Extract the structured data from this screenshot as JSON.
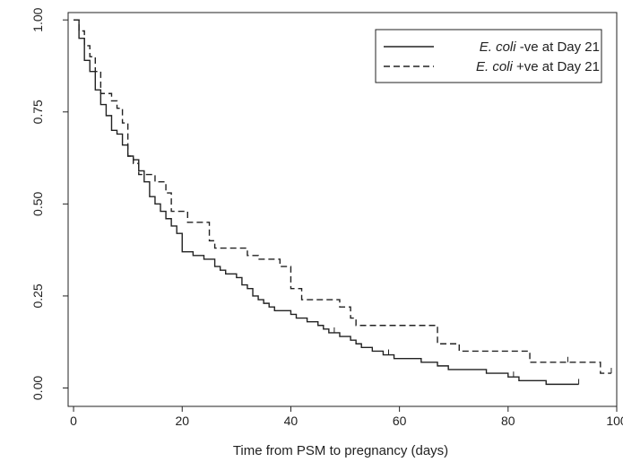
{
  "chart_data": {
    "type": "line",
    "step": true,
    "title": "",
    "xlabel": "Time from PSM to pregnancy (days)",
    "ylabel": "",
    "xlim": [
      -1,
      100
    ],
    "ylim": [
      -0.05,
      1.02
    ],
    "x_ticks": [
      {
        "value": 0,
        "label": "0"
      },
      {
        "value": 20,
        "label": "20"
      },
      {
        "value": 40,
        "label": "40"
      },
      {
        "value": 60,
        "label": "60"
      },
      {
        "value": 80,
        "label": "80"
      },
      {
        "value": 100,
        "label": "100"
      }
    ],
    "y_ticks": [
      {
        "value": 0,
        "label": "0.00"
      },
      {
        "value": 0.25,
        "label": "0.25"
      },
      {
        "value": 0.5,
        "label": "0.50"
      },
      {
        "value": 0.75,
        "label": "0.75"
      },
      {
        "value": 1,
        "label": "1.00"
      }
    ],
    "grid": false,
    "legend_position": "top-right",
    "series": [
      {
        "legend_italic": "E. coli",
        "legend_rest": " -ve at Day 21",
        "line_style": "solid",
        "color": "#222222",
        "points": [
          [
            0,
            1.0
          ],
          [
            1,
            0.95
          ],
          [
            2,
            0.89
          ],
          [
            3,
            0.86
          ],
          [
            4,
            0.81
          ],
          [
            5,
            0.77
          ],
          [
            6,
            0.74
          ],
          [
            7,
            0.7
          ],
          [
            8,
            0.69
          ],
          [
            9,
            0.66
          ],
          [
            10,
            0.63
          ],
          [
            11,
            0.62
          ],
          [
            12,
            0.59
          ],
          [
            13,
            0.56
          ],
          [
            14,
            0.52
          ],
          [
            15,
            0.5
          ],
          [
            16,
            0.48
          ],
          [
            17,
            0.46
          ],
          [
            18,
            0.44
          ],
          [
            19,
            0.42
          ],
          [
            20,
            0.37
          ],
          [
            22,
            0.36
          ],
          [
            24,
            0.35
          ],
          [
            26,
            0.33
          ],
          [
            27,
            0.32
          ],
          [
            28,
            0.31
          ],
          [
            30,
            0.3
          ],
          [
            31,
            0.28
          ],
          [
            32,
            0.27
          ],
          [
            33,
            0.25
          ],
          [
            34,
            0.24
          ],
          [
            35,
            0.23
          ],
          [
            36,
            0.22
          ],
          [
            37,
            0.21
          ],
          [
            40,
            0.2
          ],
          [
            41,
            0.19
          ],
          [
            43,
            0.18
          ],
          [
            45,
            0.17
          ],
          [
            46,
            0.16
          ],
          [
            47,
            0.15
          ],
          [
            49,
            0.14
          ],
          [
            51,
            0.13
          ],
          [
            52,
            0.12
          ],
          [
            53,
            0.11
          ],
          [
            55,
            0.1
          ],
          [
            57,
            0.09
          ],
          [
            59,
            0.08
          ],
          [
            64,
            0.07
          ],
          [
            67,
            0.06
          ],
          [
            69,
            0.05
          ],
          [
            76,
            0.04
          ],
          [
            80,
            0.03
          ],
          [
            82,
            0.02
          ],
          [
            87,
            0.01
          ],
          [
            93,
            0.01
          ]
        ],
        "censored_at": [
          48,
          58,
          81,
          93
        ]
      },
      {
        "legend_italic": "E. coli",
        "legend_rest": " +ve at Day 21",
        "line_style": "dashed",
        "color": "#222222",
        "points": [
          [
            0,
            1.0
          ],
          [
            1,
            0.97
          ],
          [
            2,
            0.93
          ],
          [
            3,
            0.9
          ],
          [
            4,
            0.86
          ],
          [
            5,
            0.8
          ],
          [
            7,
            0.78
          ],
          [
            8,
            0.76
          ],
          [
            9,
            0.72
          ],
          [
            10,
            0.63
          ],
          [
            11,
            0.61
          ],
          [
            12,
            0.58
          ],
          [
            15,
            0.56
          ],
          [
            17,
            0.53
          ],
          [
            18,
            0.48
          ],
          [
            21,
            0.45
          ],
          [
            25,
            0.4
          ],
          [
            26,
            0.38
          ],
          [
            32,
            0.36
          ],
          [
            34,
            0.35
          ],
          [
            38,
            0.33
          ],
          [
            40,
            0.27
          ],
          [
            42,
            0.24
          ],
          [
            49,
            0.22
          ],
          [
            51,
            0.19
          ],
          [
            52,
            0.17
          ],
          [
            67,
            0.12
          ],
          [
            71,
            0.1
          ],
          [
            84,
            0.07
          ],
          [
            97,
            0.04
          ],
          [
            99,
            0.04
          ]
        ],
        "censored_at": [
          91,
          99
        ]
      }
    ]
  }
}
